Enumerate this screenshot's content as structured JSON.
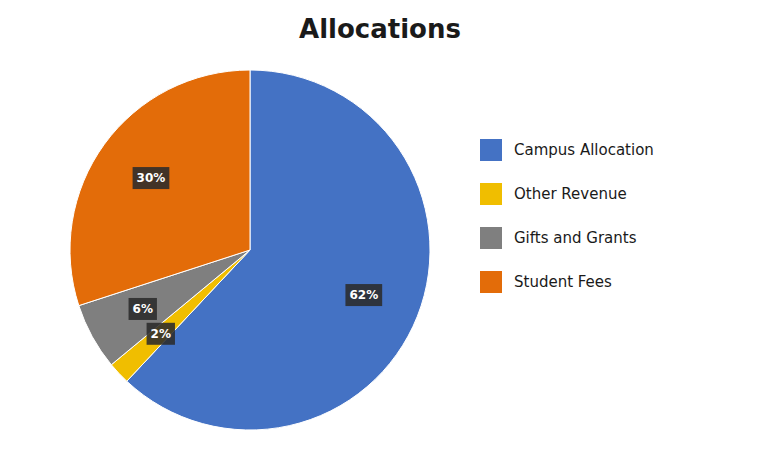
{
  "chart_data": {
    "type": "pie",
    "title": "Allocations",
    "categories": [
      "Campus Allocation",
      "Other Revenue",
      "Gifts and Grants",
      "Student Fees"
    ],
    "values": [
      62,
      2,
      6,
      30
    ],
    "value_labels": [
      "62%",
      "2%",
      "6%",
      "30%"
    ],
    "colors": [
      "#4472C4",
      "#F0BE00",
      "#7F7F7F",
      "#E36C09"
    ],
    "data_labels": true,
    "legend": "right"
  }
}
